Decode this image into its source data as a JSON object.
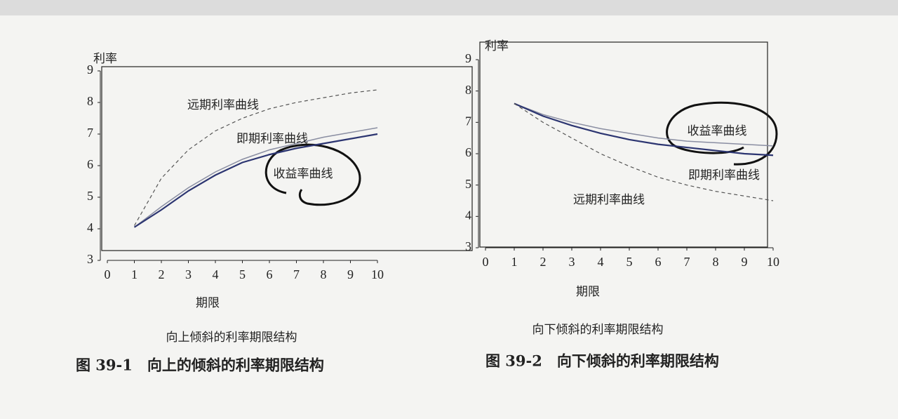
{
  "chart_data": [
    {
      "type": "line",
      "subtitle": "向上倾斜的利率期限结构",
      "caption": "图 39-1　向上的倾斜的利率期限结构",
      "y_label": "利率",
      "x_label": "期限",
      "x": [
        1,
        2,
        3,
        4,
        5,
        6,
        7,
        8,
        9,
        10
      ],
      "series": [
        {
          "name": "远期利率曲线",
          "color": "#555555",
          "dashed": true,
          "values": [
            4.1,
            5.6,
            6.5,
            7.1,
            7.5,
            7.8,
            8.0,
            8.15,
            8.3,
            8.4
          ]
        },
        {
          "name": "即期利率曲线",
          "color": "#8a8ea2",
          "dashed": false,
          "values": [
            4.05,
            4.7,
            5.3,
            5.8,
            6.2,
            6.5,
            6.7,
            6.9,
            7.05,
            7.2
          ]
        },
        {
          "name": "收益率曲线",
          "color": "#2c3571",
          "dashed": false,
          "values": [
            4.05,
            4.6,
            5.2,
            5.7,
            6.1,
            6.35,
            6.55,
            6.7,
            6.85,
            7.0
          ]
        }
      ],
      "xlim": [
        0,
        10
      ],
      "xticks": [
        0,
        1,
        2,
        3,
        4,
        5,
        6,
        7,
        8,
        9,
        10
      ],
      "ylim": [
        3,
        9
      ],
      "yticks": [
        3,
        4,
        5,
        6,
        7,
        8,
        9
      ]
    },
    {
      "type": "line",
      "subtitle": "向下倾斜的利率期限结构",
      "caption": "图 39-2　向下倾斜的利率期限结构",
      "y_label": "利率",
      "x_label": "期限",
      "x": [
        1,
        2,
        3,
        4,
        5,
        6,
        7,
        8,
        9,
        10
      ],
      "series": [
        {
          "name": "收益率曲线",
          "color": "#8a8ea2",
          "dashed": false,
          "values": [
            7.6,
            7.25,
            7.0,
            6.8,
            6.65,
            6.5,
            6.4,
            6.35,
            6.3,
            6.25
          ]
        },
        {
          "name": "即期利率曲线",
          "color": "#2c3571",
          "dashed": false,
          "values": [
            7.6,
            7.2,
            6.9,
            6.65,
            6.45,
            6.3,
            6.2,
            6.1,
            6.0,
            5.95
          ]
        },
        {
          "name": "远期利率曲线",
          "color": "#555555",
          "dashed": true,
          "values": [
            7.6,
            7.0,
            6.5,
            6.0,
            5.6,
            5.25,
            5.0,
            4.8,
            4.65,
            4.5
          ]
        }
      ],
      "xlim": [
        0,
        10
      ],
      "xticks": [
        0,
        1,
        2,
        3,
        4,
        5,
        6,
        7,
        8,
        9,
        10
      ],
      "ylim": [
        3,
        9
      ],
      "yticks": [
        3,
        4,
        5,
        6,
        7,
        8,
        9
      ]
    }
  ]
}
